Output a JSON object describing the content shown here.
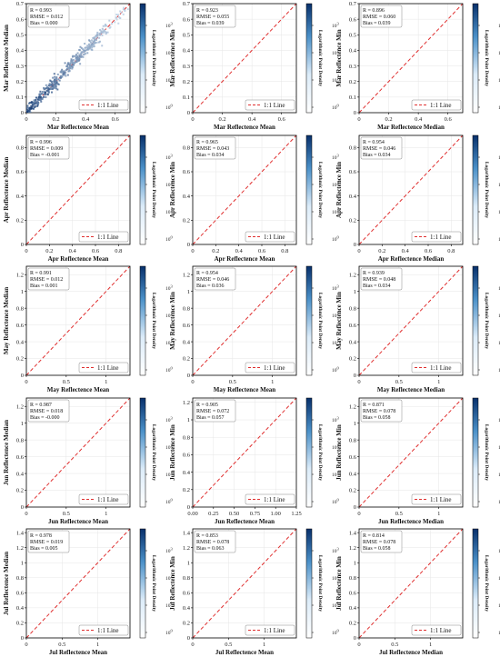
{
  "colors": {
    "density_low": "#dcecf9",
    "density_high": "#08306b",
    "one_to_one_line": "#e03030",
    "frame": "#000000"
  },
  "colorbar": {
    "label": "Logarithmic Point Density",
    "ticks": [
      "10^3",
      "10^2",
      "10^1",
      "10^0"
    ]
  },
  "chart_data": [
    {
      "type": "scatter",
      "month": "Mar",
      "xlabel": "Mar Reflectence Mean",
      "ylabel": "Mar Reflectence Median",
      "stats": [
        "R = 0.993",
        "RMSE = 0.012",
        "Bias = 0.000"
      ],
      "xlim": [
        0,
        0.7
      ],
      "ylim": [
        0,
        0.7
      ],
      "xticks": [
        0,
        0.2,
        0.4,
        0.6
      ],
      "yticks": [
        0,
        0.1,
        0.2,
        0.3,
        0.4,
        0.5,
        0.6,
        0.7
      ],
      "cloud": {
        "kind": "tight",
        "x_max": 0.55,
        "spread": 0.02,
        "bias": 0.0
      },
      "legend": "1:1 Line",
      "legend_position": "bottom-right"
    },
    {
      "type": "scatter",
      "month": "Mar",
      "xlabel": "Mar Reflectence Mean",
      "ylabel": "Mar Reflectence Min",
      "stats": [
        "R = 0.923",
        "RMSE = 0.055",
        "Bias = 0.039"
      ],
      "xlim": [
        0,
        0.7
      ],
      "ylim": [
        0,
        0.7
      ],
      "xticks": [
        0,
        0.2,
        0.4,
        0.6
      ],
      "yticks": [
        0,
        0.1,
        0.2,
        0.3,
        0.4,
        0.5,
        0.6,
        0.7
      ],
      "cloud": {
        "kind": "below",
        "x_max": 0.6,
        "spread": 0.06,
        "bias": 0.04
      },
      "legend": "1:1 Line",
      "legend_position": "bottom-right"
    },
    {
      "type": "scatter",
      "month": "Mar",
      "xlabel": "Mar Reflectence Median",
      "ylabel": "Mar Reflectence Min",
      "stats": [
        "R = 0.896",
        "RMSE = 0.060",
        "Bias = 0.039"
      ],
      "xlim": [
        0,
        0.7
      ],
      "ylim": [
        0,
        0.7
      ],
      "xticks": [
        0,
        0.2,
        0.4,
        0.6
      ],
      "yticks": [
        0,
        0.1,
        0.2,
        0.3,
        0.4,
        0.5,
        0.6,
        0.7
      ],
      "cloud": {
        "kind": "below",
        "x_max": 0.6,
        "spread": 0.07,
        "bias": 0.04
      },
      "legend": "1:1 Line",
      "legend_position": "bottom-right"
    },
    {
      "type": "scatter",
      "month": "Apr",
      "xlabel": "Apr Reflectence Mean",
      "ylabel": "Apr Reflectence Median",
      "stats": [
        "R = 0.996",
        "RMSE = 0.009",
        "Bias = -0.001"
      ],
      "xlim": [
        0,
        0.9
      ],
      "ylim": [
        0,
        0.9
      ],
      "xticks": [
        0,
        0.2,
        0.4,
        0.6,
        0.8
      ],
      "yticks": [
        0,
        0.2,
        0.4,
        0.6,
        0.8
      ],
      "cloud": {
        "kind": "tight",
        "x_max": 0.55,
        "spread": 0.015,
        "bias": 0.0
      },
      "legend": "1:1 Line",
      "legend_position": "bottom-right"
    },
    {
      "type": "scatter",
      "month": "Apr",
      "xlabel": "Apr Reflectence Mean",
      "ylabel": "Apr Reflectence Min",
      "stats": [
        "R = 0.965",
        "RMSE = 0.043",
        "Bias = 0.034"
      ],
      "xlim": [
        0,
        0.9
      ],
      "ylim": [
        0,
        0.9
      ],
      "xticks": [
        0,
        0.2,
        0.4,
        0.6,
        0.8
      ],
      "yticks": [
        0,
        0.2,
        0.4,
        0.6,
        0.8
      ],
      "cloud": {
        "kind": "below",
        "x_max": 0.55,
        "spread": 0.04,
        "bias": 0.034
      },
      "legend": "1:1 Line",
      "legend_position": "bottom-right"
    },
    {
      "type": "scatter",
      "month": "Apr",
      "xlabel": "Apr Reflectence Median",
      "ylabel": "Apr Reflectence Min",
      "stats": [
        "R = 0.954",
        "RMSE = 0.046",
        "Bias = 0.034"
      ],
      "xlim": [
        0,
        0.9
      ],
      "ylim": [
        0,
        0.9
      ],
      "xticks": [
        0,
        0.2,
        0.4,
        0.6,
        0.8
      ],
      "yticks": [
        0,
        0.2,
        0.4,
        0.6,
        0.8
      ],
      "cloud": {
        "kind": "below",
        "x_max": 0.55,
        "spread": 0.045,
        "bias": 0.034
      },
      "legend": "1:1 Line",
      "legend_position": "bottom-right"
    },
    {
      "type": "scatter",
      "month": "May",
      "xlabel": "May Reflectence Mean",
      "ylabel": "May Reflectence Median",
      "stats": [
        "R = 0.991",
        "RMSE = 0.012",
        "Bias = 0.001"
      ],
      "xlim": [
        0,
        1.3
      ],
      "ylim": [
        0,
        1.3
      ],
      "xticks": [
        0,
        0.5,
        1.0
      ],
      "yticks": [
        0,
        0.2,
        0.4,
        0.6,
        0.8,
        1.0,
        1.2
      ],
      "cloud": {
        "kind": "tight",
        "x_max": 0.55,
        "spread": 0.02,
        "bias": 0.0
      },
      "legend": "1:1 Line",
      "legend_position": "bottom-right"
    },
    {
      "type": "scatter",
      "month": "May",
      "xlabel": "May Reflectence Mean",
      "ylabel": "May Reflectence Min",
      "stats": [
        "R = 0.954",
        "RMSE = 0.046",
        "Bias = 0.036"
      ],
      "xlim": [
        0,
        1.3
      ],
      "ylim": [
        0,
        1.3
      ],
      "xticks": [
        0,
        0.5,
        1.0
      ],
      "yticks": [
        0,
        0.2,
        0.4,
        0.6,
        0.8,
        1.0,
        1.2
      ],
      "cloud": {
        "kind": "below",
        "x_max": 0.5,
        "spread": 0.04,
        "bias": 0.036
      },
      "legend": "1:1 Line",
      "legend_position": "bottom-right"
    },
    {
      "type": "scatter",
      "month": "May",
      "xlabel": "May Reflectence Median",
      "ylabel": "May Reflectence Min",
      "stats": [
        "R = 0.939",
        "RMSE = 0.048",
        "Bias = 0.034"
      ],
      "xlim": [
        0,
        1.3
      ],
      "ylim": [
        0,
        1.3
      ],
      "xticks": [
        0,
        0.5,
        1.0
      ],
      "yticks": [
        0,
        0.2,
        0.4,
        0.6,
        0.8,
        1.0,
        1.2
      ],
      "cloud": {
        "kind": "below",
        "x_max": 0.5,
        "spread": 0.045,
        "bias": 0.034
      },
      "legend": "1:1 Line",
      "legend_position": "bottom-right"
    },
    {
      "type": "scatter",
      "month": "Jun",
      "xlabel": "Jun Reflectence Mean",
      "ylabel": "Jun Reflectence Median",
      "stats": [
        "R = 0.987",
        "RMSE = 0.018",
        "Bias = -0.000"
      ],
      "xlim": [
        0,
        1.3
      ],
      "ylim": [
        0,
        1.3
      ],
      "xticks": [
        0,
        0.5,
        1.0
      ],
      "yticks": [
        0,
        0.2,
        0.4,
        0.6,
        0.8,
        1.0,
        1.2
      ],
      "cloud": {
        "kind": "tight",
        "x_max": 0.6,
        "spread": 0.025,
        "bias": 0.0
      },
      "legend": "1:1 Line",
      "legend_position": "bottom-right"
    },
    {
      "type": "scatter",
      "month": "Jun",
      "xlabel": "Jun Reflectence Mean",
      "ylabel": "Jun Reflectence Min",
      "stats": [
        "R = 0.905",
        "RMSE = 0.072",
        "Bias = 0.057"
      ],
      "xlim": [
        0,
        1.25
      ],
      "ylim": [
        0,
        1.25
      ],
      "xticks": [
        0,
        0.25,
        0.5,
        0.75,
        1.0,
        1.25
      ],
      "xticklabels": [
        "0.00",
        "0.25",
        "0.50",
        "0.75",
        "1.00",
        "1.25"
      ],
      "yticks": [
        0,
        0.2,
        0.4,
        0.6,
        0.8,
        1.0,
        1.2
      ],
      "cloud": {
        "kind": "below",
        "x_max": 0.55,
        "spread": 0.06,
        "bias": 0.057
      },
      "legend": "1:1 Line",
      "legend_position": "bottom-right"
    },
    {
      "type": "scatter",
      "month": "Jun",
      "xlabel": "Jun Reflectence Median",
      "ylabel": "Jun Reflectence Min",
      "stats": [
        "R = 0.871",
        "RMSE = 0.078",
        "Bias = 0.058"
      ],
      "xlim": [
        0,
        1.3
      ],
      "ylim": [
        0,
        1.3
      ],
      "xticks": [
        0,
        0.5,
        1.0
      ],
      "yticks": [
        0,
        0.2,
        0.4,
        0.6,
        0.8,
        1.0,
        1.2
      ],
      "cloud": {
        "kind": "below",
        "x_max": 0.55,
        "spread": 0.07,
        "bias": 0.058
      },
      "legend": "1:1 Line",
      "legend_position": "bottom-right"
    },
    {
      "type": "scatter",
      "month": "Jul",
      "xlabel": "Jul Reflectence Mean",
      "ylabel": "Jul Reflectence Median",
      "stats": [
        "R = 0.978",
        "RMSE = 0.019",
        "Bias = 0.005"
      ],
      "xlim": [
        0,
        1.45
      ],
      "ylim": [
        0,
        1.45
      ],
      "xticks": [
        0,
        0.5,
        1.0
      ],
      "yticks": [
        0,
        0.2,
        0.4,
        0.6,
        0.8,
        1.0,
        1.2,
        1.4
      ],
      "cloud": {
        "kind": "tight",
        "x_max": 0.6,
        "spread": 0.03,
        "bias": 0.0
      },
      "legend": "1:1 Line",
      "legend_position": "bottom-right"
    },
    {
      "type": "scatter",
      "month": "Jul",
      "xlabel": "Jul Reflectence Mean",
      "ylabel": "Jul Reflectence Min",
      "stats": [
        "R = 0.853",
        "RMSE = 0.078",
        "Bias = 0.063"
      ],
      "xlim": [
        0,
        1.45
      ],
      "ylim": [
        0,
        1.45
      ],
      "xticks": [
        0,
        0.5,
        1.0
      ],
      "yticks": [
        0,
        0.2,
        0.4,
        0.6,
        0.8,
        1.0,
        1.2,
        1.4
      ],
      "cloud": {
        "kind": "below",
        "x_max": 0.55,
        "spread": 0.07,
        "bias": 0.063
      },
      "legend": "1:1 Line",
      "legend_position": "bottom-right"
    },
    {
      "type": "scatter",
      "month": "Jul",
      "xlabel": "Jul Reflectence Median",
      "ylabel": "Jul Reflectence Min",
      "stats": [
        "R = 0.814",
        "RMSE = 0.078",
        "Bias = 0.058"
      ],
      "xlim": [
        0,
        1.45
      ],
      "ylim": [
        0,
        1.45
      ],
      "xticks": [
        0,
        0.5,
        1.0
      ],
      "yticks": [
        0,
        0.2,
        0.4,
        0.6,
        0.8,
        1.0,
        1.2,
        1.4
      ],
      "cloud": {
        "kind": "below",
        "x_max": 0.55,
        "spread": 0.075,
        "bias": 0.058
      },
      "legend": "1:1 Line",
      "legend_position": "bottom-right"
    }
  ]
}
